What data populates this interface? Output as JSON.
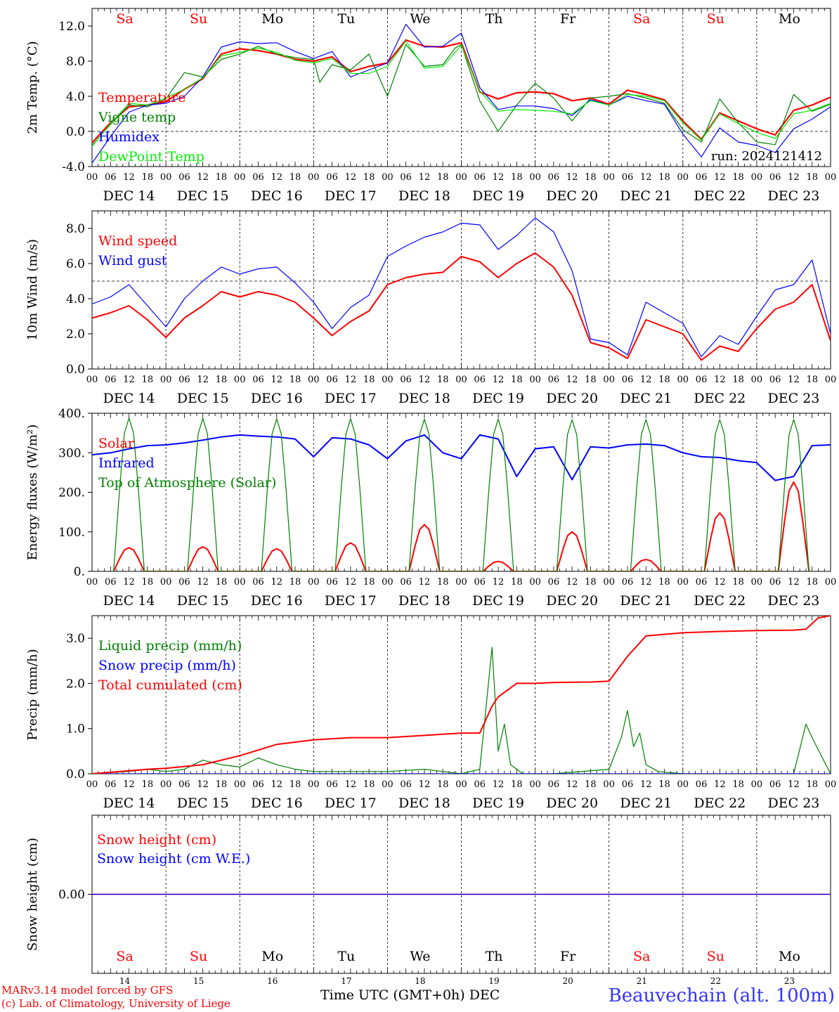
{
  "meta": {
    "run_label": "run: 2024121412",
    "model_credit": "MARv3.14 model forced by GFS",
    "lab_credit": "(c) Lab. of Climatology, University of Liege",
    "x_title": "Time UTC (GMT+0h)",
    "x_month": "DEC",
    "station": "Beauvechain (alt. 100m)",
    "colors": {
      "red": "#ff0000",
      "blue": "#0000ff",
      "green": "#008000",
      "light_green": "#00ee00",
      "station": "#3333ff"
    }
  },
  "chart_data": [
    {
      "type": "line",
      "ylabel": "2m Temp. (°C)",
      "ylim": [
        -4,
        14
      ],
      "yticks": [
        "-4.0",
        "0.0",
        "4.0",
        "8.0",
        "12.0"
      ],
      "hlines": [
        0
      ],
      "day_names": [
        "Sa",
        "Su",
        "Mo",
        "Tu",
        "We",
        "Th",
        "Fr",
        "Sa",
        "Su",
        "Mo"
      ],
      "day_name_colors": [
        "red",
        "red",
        "black",
        "black",
        "black",
        "black",
        "black",
        "red",
        "red",
        "black"
      ],
      "date_labels": [
        "DEC 14",
        "DEC 15",
        "DEC 16",
        "DEC 17",
        "DEC 18",
        "DEC 19",
        "DEC 20",
        "DEC 21",
        "DEC 22",
        "DEC 23"
      ],
      "hour_labels": [
        "00",
        "06",
        "12",
        "18"
      ],
      "legend": [
        "Temperature",
        "Vigne temp",
        "Humidex",
        "DewPoint Temp"
      ],
      "series": [
        {
          "name": "Temperature",
          "color": "#ff0000",
          "width": 2.2,
          "x": [
            0,
            6,
            12,
            18,
            24,
            30,
            36,
            42,
            48,
            54,
            60,
            66,
            72,
            78,
            84,
            90,
            96,
            102,
            108,
            114,
            120,
            126,
            132,
            138,
            144,
            150,
            156,
            162,
            168,
            174,
            180,
            186,
            192,
            198,
            204,
            210,
            216,
            222,
            228,
            234,
            240
          ],
          "y": [
            -1.3,
            1.0,
            2.8,
            3.0,
            3.4,
            4.8,
            6.0,
            8.8,
            9.4,
            9.2,
            8.8,
            8.2,
            8.0,
            8.5,
            6.8,
            7.4,
            7.8,
            10.4,
            9.7,
            9.6,
            10.1,
            4.5,
            3.7,
            4.4,
            4.5,
            4.3,
            3.5,
            3.8,
            3.1,
            4.7,
            4.2,
            3.6,
            1.2,
            -0.9,
            2.1,
            1.2,
            0.3,
            -0.4,
            2.4,
            3.0,
            3.9
          ]
        },
        {
          "name": "Vigne temp",
          "color": "#008000",
          "width": 1.2,
          "x": [
            0,
            6,
            12,
            18,
            24,
            30,
            36,
            42,
            48,
            54,
            60,
            66,
            72,
            74,
            78,
            84,
            90,
            96,
            102,
            108,
            114,
            118,
            120,
            126,
            132,
            138,
            144,
            150,
            156,
            162,
            168,
            174,
            180,
            186,
            192,
            198,
            204,
            210,
            216,
            222,
            228,
            234,
            240
          ],
          "y": [
            -1.6,
            0.8,
            3.0,
            2.8,
            3.7,
            6.7,
            6.2,
            8.2,
            8.8,
            9.7,
            8.8,
            8.4,
            8.2,
            5.6,
            7.6,
            7.0,
            8.8,
            4.0,
            9.9,
            7.4,
            7.6,
            9.5,
            9.9,
            3.5,
            0.0,
            3.0,
            5.5,
            3.8,
            1.2,
            3.8,
            4.0,
            4.3,
            3.8,
            3.2,
            0.2,
            -1.2,
            3.7,
            1.0,
            -1.2,
            -1.5,
            4.2,
            2.3,
            3.1
          ]
        },
        {
          "name": "Humidex",
          "color": "#0000ff",
          "width": 1.2,
          "x": [
            0,
            6,
            12,
            18,
            24,
            30,
            36,
            42,
            48,
            54,
            60,
            66,
            72,
            78,
            84,
            90,
            96,
            102,
            108,
            114,
            120,
            126,
            132,
            138,
            144,
            150,
            156,
            162,
            168,
            174,
            180,
            186,
            192,
            198,
            204,
            210,
            216,
            222,
            228,
            234,
            240
          ],
          "y": [
            -3.6,
            -0.6,
            2.2,
            3.0,
            3.2,
            4.0,
            6.2,
            9.6,
            10.2,
            10.0,
            10.1,
            9.1,
            8.3,
            9.1,
            6.2,
            7.0,
            7.8,
            12.2,
            9.6,
            9.7,
            11.2,
            5.0,
            2.5,
            2.9,
            2.9,
            2.6,
            1.8,
            3.6,
            3.0,
            4.0,
            3.5,
            3.1,
            -0.3,
            -2.9,
            0.4,
            -1.2,
            -1.6,
            -2.4,
            0.3,
            1.4,
            2.8
          ]
        },
        {
          "name": "DewPoint Temp",
          "color": "#00ee00",
          "width": 1.2,
          "x": [
            0,
            6,
            12,
            18,
            24,
            30,
            36,
            42,
            48,
            54,
            60,
            66,
            72,
            78,
            84,
            90,
            96,
            102,
            108,
            114,
            120,
            126,
            132,
            138,
            144,
            150,
            156,
            162,
            168,
            174,
            180,
            186,
            192,
            198,
            204,
            210,
            216,
            222,
            228,
            234,
            240
          ],
          "y": [
            -1.7,
            0.9,
            3.2,
            3.0,
            3.8,
            4.8,
            6.1,
            8.6,
            9.0,
            9.5,
            9.0,
            8.1,
            7.8,
            8.3,
            6.6,
            6.6,
            7.4,
            10.3,
            7.2,
            7.4,
            9.8,
            4.6,
            2.3,
            2.5,
            2.4,
            2.3,
            2.0,
            3.5,
            3.0,
            4.2,
            4.0,
            3.5,
            1.0,
            -1.0,
            2.0,
            0.9,
            -0.1,
            -0.8,
            2.0,
            2.4,
            3.2
          ]
        }
      ]
    },
    {
      "type": "line",
      "ylabel": "10m Wind (m/s)",
      "ylim": [
        0,
        9
      ],
      "yticks": [
        "0.0",
        "2.0",
        "4.0",
        "6.0",
        "8.0"
      ],
      "hlines": [
        5
      ],
      "date_labels": [
        "DEC 14",
        "DEC 15",
        "DEC 16",
        "DEC 17",
        "DEC 18",
        "DEC 19",
        "DEC 20",
        "DEC 21",
        "DEC 22",
        "DEC 23"
      ],
      "hour_labels": [
        "00",
        "06",
        "12",
        "18"
      ],
      "legend": [
        "Wind speed",
        "Wind gust"
      ],
      "series": [
        {
          "name": "Wind speed",
          "color": "#ff0000",
          "width": 2.0,
          "x": [
            0,
            6,
            12,
            18,
            24,
            30,
            36,
            42,
            48,
            54,
            60,
            66,
            72,
            78,
            84,
            90,
            96,
            102,
            108,
            114,
            120,
            126,
            132,
            138,
            144,
            150,
            156,
            162,
            168,
            174,
            180,
            186,
            192,
            198,
            204,
            210,
            216,
            222,
            228,
            234,
            240
          ],
          "y": [
            2.9,
            3.2,
            3.6,
            2.8,
            1.8,
            2.9,
            3.6,
            4.4,
            4.1,
            4.4,
            4.2,
            3.8,
            2.9,
            1.9,
            2.7,
            3.3,
            4.8,
            5.2,
            5.4,
            5.5,
            6.4,
            6.1,
            5.2,
            6.0,
            6.6,
            5.8,
            4.2,
            1.5,
            1.2,
            0.6,
            2.8,
            2.4,
            2.0,
            0.5,
            1.3,
            1.0,
            2.3,
            3.4,
            3.8,
            4.8,
            1.6
          ]
        },
        {
          "name": "Wind gust",
          "color": "#0000ff",
          "width": 1.2,
          "x": [
            0,
            6,
            12,
            18,
            24,
            30,
            36,
            42,
            48,
            54,
            60,
            66,
            72,
            78,
            84,
            90,
            96,
            102,
            108,
            114,
            120,
            126,
            132,
            138,
            144,
            150,
            156,
            162,
            168,
            174,
            180,
            186,
            192,
            198,
            204,
            210,
            216,
            222,
            228,
            234,
            240
          ],
          "y": [
            3.7,
            4.1,
            4.8,
            3.6,
            2.4,
            4.0,
            5.0,
            5.8,
            5.4,
            5.7,
            5.8,
            4.9,
            3.8,
            2.3,
            3.5,
            4.2,
            6.4,
            7.0,
            7.5,
            7.8,
            8.3,
            8.2,
            6.8,
            7.6,
            8.6,
            7.8,
            5.6,
            1.7,
            1.5,
            0.8,
            3.8,
            3.2,
            2.6,
            0.7,
            1.9,
            1.4,
            3.0,
            4.5,
            4.8,
            6.2,
            2.0
          ]
        }
      ]
    },
    {
      "type": "line",
      "ylabel": "Energy fluxes (W/m²)",
      "ylim": [
        0,
        400
      ],
      "yticks": [
        "0.",
        "100.",
        "200.",
        "300.",
        "400."
      ],
      "hlines": [],
      "date_labels": [
        "DEC 14",
        "DEC 15",
        "DEC 16",
        "DEC 17",
        "DEC 18",
        "DEC 19",
        "DEC 20",
        "DEC 21",
        "DEC 22",
        "DEC 23"
      ],
      "hour_labels": [
        "00",
        "06",
        "12",
        "18"
      ],
      "legend": [
        "Solar",
        "Infrared",
        "Top of Atmosphere (Solar)"
      ],
      "series": [
        {
          "name": "Solar",
          "color": "#ff0000",
          "width": 2.0,
          "pattern": "daily_peak",
          "peaks": [
            60,
            62,
            57,
            72,
            118,
            25,
            100,
            30,
            148,
            226
          ]
        },
        {
          "name": "Infrared",
          "color": "#0000ff",
          "width": 2.0,
          "x": [
            0,
            6,
            12,
            18,
            24,
            30,
            36,
            42,
            48,
            54,
            60,
            66,
            72,
            78,
            84,
            90,
            96,
            102,
            108,
            114,
            120,
            126,
            132,
            138,
            144,
            150,
            156,
            162,
            168,
            174,
            180,
            186,
            192,
            198,
            204,
            210,
            216,
            222,
            228,
            234,
            240
          ],
          "y": [
            295,
            300,
            310,
            318,
            320,
            325,
            332,
            340,
            345,
            342,
            340,
            335,
            290,
            338,
            335,
            320,
            285,
            330,
            345,
            300,
            285,
            345,
            335,
            240,
            310,
            315,
            232,
            315,
            312,
            320,
            322,
            318,
            300,
            290,
            288,
            280,
            275,
            230,
            240,
            318,
            320
          ]
        },
        {
          "name": "Top of Atmosphere (Solar)",
          "color": "#008000",
          "width": 1.2,
          "pattern": "daily_peak",
          "peaks": [
            388,
            387,
            386,
            386,
            385,
            385,
            384,
            384,
            384,
            384
          ]
        }
      ]
    },
    {
      "type": "line",
      "ylabel": "Precip (mm/h)",
      "ylim": [
        0,
        3.5
      ],
      "yticks": [
        "0.0",
        "1.0",
        "2.0",
        "3.0"
      ],
      "hlines": [],
      "date_labels": [
        "DEC 14",
        "DEC 15",
        "DEC 16",
        "DEC 17",
        "DEC 18",
        "DEC 19",
        "DEC 20",
        "DEC 21",
        "DEC 22",
        "DEC 23"
      ],
      "hour_labels": [
        "00",
        "06",
        "12",
        "18"
      ],
      "legend": [
        "Liquid precip (mm/h)",
        "Snow precip (mm/h)",
        "Total cumulated (cm)"
      ],
      "series": [
        {
          "name": "Liquid precip (mm/h)",
          "color": "#008000",
          "width": 1.2,
          "x": [
            0,
            12,
            18,
            24,
            30,
            36,
            42,
            48,
            54,
            60,
            66,
            72,
            84,
            96,
            108,
            114,
            120,
            126,
            130,
            132,
            134,
            136,
            140,
            150,
            168,
            172,
            174,
            176,
            178,
            180,
            184,
            192,
            228,
            232,
            234,
            240
          ],
          "y": [
            0.0,
            0.05,
            0.1,
            0.05,
            0.1,
            0.3,
            0.2,
            0.15,
            0.35,
            0.2,
            0.1,
            0.05,
            0.05,
            0.05,
            0.1,
            0.05,
            0.0,
            0.1,
            2.8,
            0.5,
            1.1,
            0.2,
            0.0,
            0.0,
            0.1,
            0.8,
            1.4,
            0.6,
            0.9,
            0.2,
            0.05,
            0.0,
            0.0,
            1.1,
            0.8,
            0.0
          ]
        },
        {
          "name": "Snow precip (mm/h)",
          "color": "#0000ff",
          "width": 1.2,
          "x": [
            0,
            240
          ],
          "y": [
            0.0,
            0.0
          ]
        },
        {
          "name": "Total cumulated (cm)",
          "color": "#ff0000",
          "width": 2.0,
          "x": [
            0,
            18,
            24,
            36,
            48,
            60,
            72,
            84,
            96,
            108,
            120,
            126,
            130,
            132,
            138,
            144,
            150,
            162,
            168,
            174,
            180,
            192,
            204,
            216,
            228,
            232,
            236,
            240
          ],
          "y": [
            0.0,
            0.1,
            0.12,
            0.2,
            0.4,
            0.65,
            0.75,
            0.8,
            0.8,
            0.85,
            0.9,
            0.9,
            1.5,
            1.7,
            2.0,
            2.0,
            2.02,
            2.03,
            2.05,
            2.6,
            3.05,
            3.12,
            3.15,
            3.17,
            3.18,
            3.2,
            3.45,
            3.5
          ]
        }
      ]
    },
    {
      "type": "line",
      "ylabel": "Snow height (cm)",
      "ylim": [
        -1,
        1
      ],
      "yticks": [
        "0.00"
      ],
      "hlines": [],
      "day_names": [
        "Sa",
        "Su",
        "Mo",
        "Tu",
        "We",
        "Th",
        "Fr",
        "Sa",
        "Su",
        "Mo"
      ],
      "day_name_colors": [
        "red",
        "red",
        "black",
        "black",
        "black",
        "black",
        "black",
        "red",
        "red",
        "black"
      ],
      "day_numbers": [
        "14",
        "15",
        "16",
        "17",
        "18",
        "19",
        "20",
        "21",
        "22",
        "23"
      ],
      "legend": [
        "Snow height (cm)",
        "Snow height (cm W.E.)"
      ],
      "series": [
        {
          "name": "Snow height (cm)",
          "color": "#ff0000",
          "width": 1.6,
          "x": [
            0,
            240
          ],
          "y": [
            0,
            0
          ]
        },
        {
          "name": "Snow height (cm W.E.)",
          "color": "#0000ff",
          "width": 1.2,
          "x": [
            0,
            240
          ],
          "y": [
            0,
            0
          ]
        }
      ]
    }
  ]
}
